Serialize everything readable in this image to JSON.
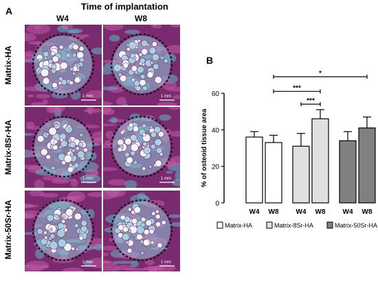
{
  "panel_a": {
    "letter": "A",
    "title": "Time of implantation",
    "columns": [
      "W4",
      "W8"
    ],
    "rows": [
      "Matrix-HA",
      "Matrix-8Sr-HA",
      "Matrix-50Sr-HA"
    ],
    "scale_bar": "1 mm",
    "colors": {
      "tissue_purple": "#7a2a6e",
      "bone_pink": "#c25aa8",
      "cyan": "#5fb4c4",
      "sphere": "#a8d8e4"
    }
  },
  "panel_b": {
    "letter": "B"
  },
  "chart_data": {
    "type": "bar",
    "ylabel": "% of osteoid tissue area",
    "ylim": [
      0,
      60
    ],
    "yticks": [
      0,
      20,
      40,
      60
    ],
    "categories": [
      "W4",
      "W8",
      "W4",
      "W8",
      "W4",
      "W8"
    ],
    "groups": [
      {
        "name": "Matrix-HA",
        "color": "#ffffff"
      },
      {
        "name": "Matrix-8Sr-HA",
        "color": "#e0e0e0"
      },
      {
        "name": "Matrix-50Sr-HA",
        "color": "#808080"
      }
    ],
    "values": [
      36,
      33,
      31,
      46,
      34,
      41
    ],
    "errors": [
      3,
      4,
      7,
      5,
      5,
      6
    ],
    "bar_group": [
      0,
      0,
      1,
      1,
      2,
      2
    ],
    "significance": [
      {
        "from": 2,
        "to": 3,
        "label": "***"
      },
      {
        "from": 1,
        "to": 3,
        "label": "***"
      },
      {
        "from": 1,
        "to": 5,
        "label": "*"
      }
    ],
    "legend": [
      "Matrix-HA",
      "Matrix-8Sr-HA",
      "Matrix-50Sr-HA"
    ],
    "legend_position": "bottom"
  }
}
